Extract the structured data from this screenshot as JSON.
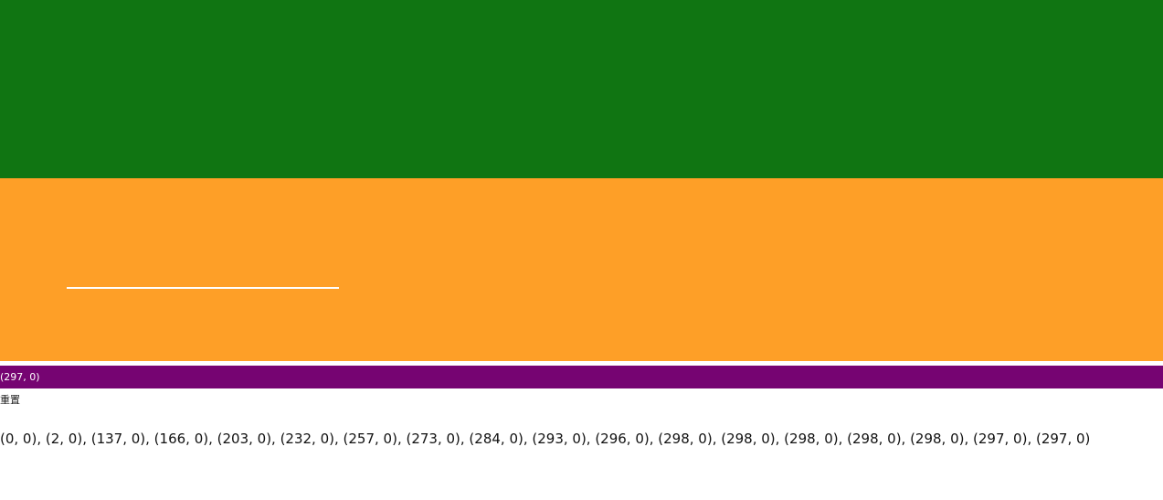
{
  "colors": {
    "top_panel": "#107512",
    "drag_area": "#fe9f27",
    "readout_bar": "#760472",
    "track_line": "#ffffff"
  },
  "readout": {
    "current_position": "(297, 0)"
  },
  "controls": {
    "reset_label": "重置"
  },
  "history": {
    "positions": "(0, 0), (2, 0), (137, 0), (166, 0), (203, 0), (232, 0), (257, 0), (273, 0), (284, 0), (293, 0), (296, 0), (298, 0), (298, 0), (298, 0), (298, 0), (298, 0), (297, 0), (297, 0)"
  }
}
